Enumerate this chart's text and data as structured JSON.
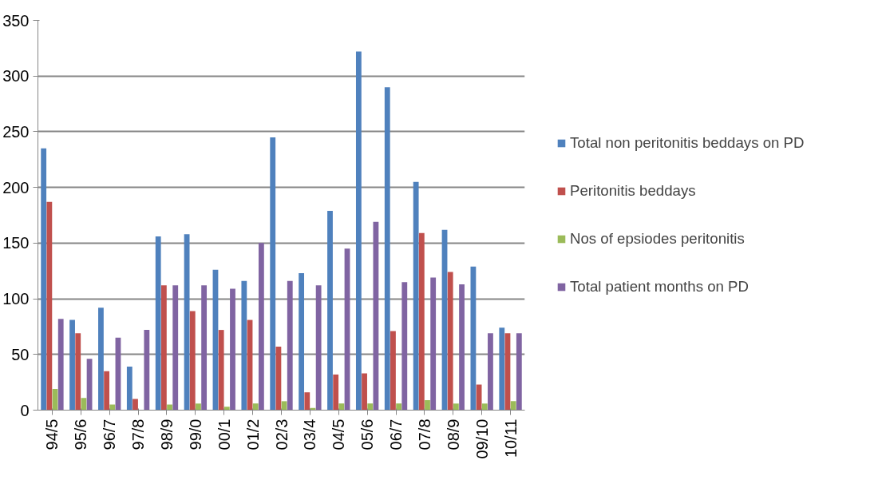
{
  "chart_data": {
    "type": "bar",
    "categories": [
      "94/5",
      "95/6",
      "96/7",
      "97/8",
      "98/9",
      "99/0",
      "00/1",
      "01/2",
      "02/3",
      "03/4",
      "04/5",
      "05/6",
      "06/7",
      "07/8",
      "08/9",
      "09/10",
      "10/11"
    ],
    "series": [
      {
        "name": "Total non peritonitis beddays on PD",
        "color": "#4f81bd",
        "values": [
          235,
          81,
          92,
          39,
          156,
          158,
          126,
          116,
          245,
          123,
          179,
          322,
          290,
          205,
          162,
          129,
          74
        ]
      },
      {
        "name": "Peritonitis beddays",
        "color": "#c0504d",
        "values": [
          187,
          69,
          35,
          10,
          112,
          89,
          72,
          81,
          57,
          16,
          32,
          33,
          71,
          159,
          124,
          23,
          69
        ]
      },
      {
        "name": "Nos of epsiodes peritonitis",
        "color": "#9bbb59",
        "values": [
          19,
          11,
          5,
          0,
          5,
          6,
          3,
          6,
          8,
          2,
          6,
          6,
          6,
          9,
          6,
          6,
          8
        ]
      },
      {
        "name": "Total patient months on PD",
        "color": "#8064a2",
        "values": [
          82,
          46,
          65,
          72,
          112,
          112,
          109,
          150,
          116,
          112,
          145,
          169,
          115,
          119,
          113,
          69,
          69
        ]
      }
    ],
    "ylim": [
      0,
      350
    ],
    "yticks": [
      0,
      50,
      100,
      150,
      200,
      250,
      300,
      350
    ],
    "grid": "y",
    "legend": "right"
  }
}
